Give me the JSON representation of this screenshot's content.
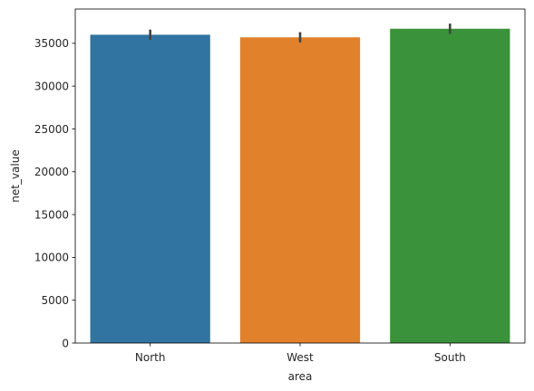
{
  "chart_data": {
    "type": "bar",
    "title": "",
    "xlabel": "area",
    "ylabel": "net_value",
    "categories": [
      "North",
      "West",
      "South"
    ],
    "values": [
      36000,
      35700,
      36700
    ],
    "error_bars": [
      {
        "low": 35400,
        "high": 36600
      },
      {
        "low": 35100,
        "high": 36300
      },
      {
        "low": 36100,
        "high": 37300
      }
    ],
    "colors": [
      "#3274a1",
      "#e1812c",
      "#3a923a"
    ],
    "error_color": "#424242",
    "ylim": [
      0,
      39000
    ],
    "yticks": [
      0,
      5000,
      10000,
      15000,
      20000,
      25000,
      30000,
      35000
    ],
    "ytick_labels": [
      "0",
      "5000",
      "10000",
      "15000",
      "20000",
      "25000",
      "30000",
      "35000"
    ],
    "grid": false,
    "legend": "none"
  }
}
